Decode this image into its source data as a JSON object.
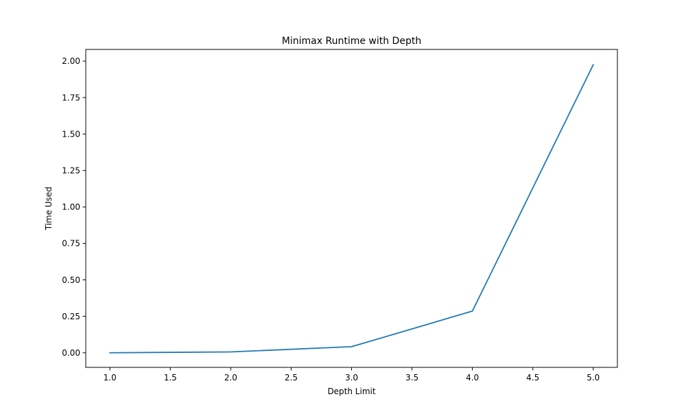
{
  "chart_data": {
    "type": "line",
    "title": "Minimax Runtime with Depth",
    "xlabel": "Depth Limit",
    "ylabel": "Time Used",
    "xlim": [
      0.8,
      5.2
    ],
    "ylim": [
      -0.1,
      2.08
    ],
    "x_ticks": [
      "1.0",
      "1.5",
      "2.0",
      "2.5",
      "3.0",
      "3.5",
      "4.0",
      "4.5",
      "5.0"
    ],
    "y_ticks": [
      "0.00",
      "0.25",
      "0.50",
      "0.75",
      "1.00",
      "1.25",
      "1.50",
      "1.75",
      "2.00"
    ],
    "grid": false,
    "legend": "none",
    "series": [
      {
        "color": "#1f77b4",
        "x": [
          1,
          2,
          3,
          4,
          5
        ],
        "y": [
          0.0,
          0.006,
          0.042,
          0.286,
          1.975
        ]
      }
    ]
  }
}
